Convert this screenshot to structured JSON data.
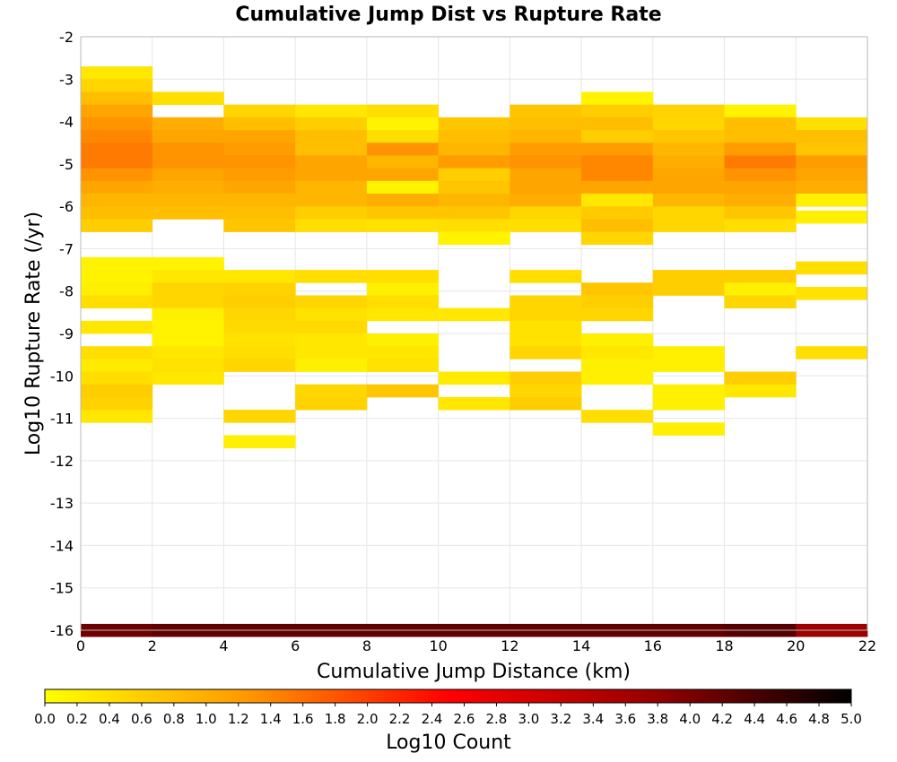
{
  "chart_data": {
    "type": "heatmap",
    "title": "Cumulative Jump Dist vs Rupture Rate",
    "xlabel": "Cumulative Jump Distance (km)",
    "ylabel": "Log10 Rupture Rate (/yr)",
    "xlim": [
      0,
      22
    ],
    "ylim": [
      -16,
      -2
    ],
    "x_ticks": [
      "0",
      "2",
      "4",
      "6",
      "8",
      "10",
      "12",
      "14",
      "16",
      "18",
      "20",
      "22"
    ],
    "y_ticks": [
      "-2",
      "-3",
      "-4",
      "-5",
      "-6",
      "-7",
      "-8",
      "-9",
      "-10",
      "-11",
      "-12",
      "-13",
      "-14",
      "-15",
      "-16"
    ],
    "x_bin_width": 2,
    "y_bin_height": 0.3,
    "grid": true,
    "colorbar": {
      "label": "Log10 Count",
      "min": 0.0,
      "max": 5.0,
      "ticks": [
        "0.0",
        "0.2",
        "0.4",
        "0.6",
        "0.8",
        "1.0",
        "1.2",
        "1.4",
        "1.6",
        "1.8",
        "2.0",
        "2.2",
        "2.4",
        "2.6",
        "2.8",
        "3.0",
        "3.2",
        "3.4",
        "3.6",
        "3.8",
        "4.0",
        "4.2",
        "4.4",
        "4.6",
        "4.8",
        "5.0"
      ],
      "colors": [
        "#ffff00",
        "#ff9900",
        "#ff0000",
        "#990000",
        "#000000"
      ]
    },
    "columns": [
      {
        "x": 0,
        "cells": [
          [
            -2.85,
            0.3
          ],
          [
            -3.15,
            0.5
          ],
          [
            -3.45,
            0.8
          ],
          [
            -3.75,
            1.1
          ],
          [
            -4.05,
            1.3
          ],
          [
            -4.35,
            1.4
          ],
          [
            -4.65,
            1.5
          ],
          [
            -4.95,
            1.5
          ],
          [
            -5.25,
            1.3
          ],
          [
            -5.55,
            1.1
          ],
          [
            -5.85,
            0.9
          ],
          [
            -6.15,
            0.8
          ],
          [
            -6.45,
            0.6
          ],
          [
            -7.35,
            0.15
          ],
          [
            -7.65,
            0.15
          ],
          [
            -7.95,
            0.2
          ],
          [
            -8.25,
            0.4
          ],
          [
            -8.85,
            0.3
          ],
          [
            -9.45,
            0.4
          ],
          [
            -9.75,
            0.25
          ],
          [
            -10.05,
            0.4
          ],
          [
            -10.35,
            0.6
          ],
          [
            -10.65,
            0.55
          ],
          [
            -10.95,
            0.3
          ],
          [
            -16.0,
            4.1
          ]
        ]
      },
      {
        "x": 2,
        "cells": [
          [
            -3.45,
            0.4
          ],
          [
            -4.05,
            1.0
          ],
          [
            -4.35,
            1.1
          ],
          [
            -4.65,
            1.3
          ],
          [
            -4.95,
            1.3
          ],
          [
            -5.25,
            1.1
          ],
          [
            -5.55,
            1.0
          ],
          [
            -5.85,
            0.9
          ],
          [
            -6.15,
            0.8
          ],
          [
            -7.35,
            0.15
          ],
          [
            -7.65,
            0.3
          ],
          [
            -7.95,
            0.5
          ],
          [
            -8.25,
            0.5
          ],
          [
            -8.55,
            0.2
          ],
          [
            -8.85,
            0.15
          ],
          [
            -9.15,
            0.15
          ],
          [
            -9.45,
            0.3
          ],
          [
            -9.75,
            0.35
          ],
          [
            -10.05,
            0.3
          ],
          [
            -16.0,
            4.2
          ]
        ]
      },
      {
        "x": 4,
        "cells": [
          [
            -3.75,
            0.5
          ],
          [
            -4.05,
            0.8
          ],
          [
            -4.35,
            1.1
          ],
          [
            -4.65,
            1.2
          ],
          [
            -4.95,
            1.3
          ],
          [
            -5.25,
            1.2
          ],
          [
            -5.55,
            1.1
          ],
          [
            -5.85,
            0.9
          ],
          [
            -6.15,
            0.8
          ],
          [
            -6.45,
            0.7
          ],
          [
            -7.65,
            0.3
          ],
          [
            -7.95,
            0.55
          ],
          [
            -8.25,
            0.6
          ],
          [
            -8.55,
            0.5
          ],
          [
            -8.85,
            0.45
          ],
          [
            -9.15,
            0.35
          ],
          [
            -9.45,
            0.4
          ],
          [
            -9.75,
            0.5
          ],
          [
            -10.95,
            0.5
          ],
          [
            -11.55,
            0.2
          ],
          [
            -16.0,
            4.2
          ]
        ]
      },
      {
        "x": 6,
        "cells": [
          [
            -3.75,
            0.3
          ],
          [
            -4.05,
            0.6
          ],
          [
            -4.35,
            0.8
          ],
          [
            -4.65,
            0.8
          ],
          [
            -4.95,
            1.1
          ],
          [
            -5.25,
            1.1
          ],
          [
            -5.55,
            0.9
          ],
          [
            -5.85,
            0.9
          ],
          [
            -6.15,
            0.6
          ],
          [
            -6.45,
            0.4
          ],
          [
            -7.65,
            0.4
          ],
          [
            -8.25,
            0.5
          ],
          [
            -8.55,
            0.35
          ],
          [
            -8.85,
            0.45
          ],
          [
            -9.15,
            0.3
          ],
          [
            -9.45,
            0.3
          ],
          [
            -9.75,
            0.2
          ],
          [
            -10.35,
            0.5
          ],
          [
            -10.65,
            0.55
          ],
          [
            -16.0,
            4.2
          ]
        ]
      },
      {
        "x": 8,
        "cells": [
          [
            -3.75,
            0.4
          ],
          [
            -4.05,
            0.15
          ],
          [
            -4.35,
            0.4
          ],
          [
            -4.65,
            1.3
          ],
          [
            -4.95,
            0.9
          ],
          [
            -5.25,
            1.1
          ],
          [
            -5.55,
            0.15
          ],
          [
            -5.85,
            1.0
          ],
          [
            -6.15,
            0.7
          ],
          [
            -6.45,
            0.35
          ],
          [
            -7.65,
            0.4
          ],
          [
            -7.95,
            0.2
          ],
          [
            -8.25,
            0.4
          ],
          [
            -8.55,
            0.3
          ],
          [
            -9.15,
            0.2
          ],
          [
            -9.45,
            0.3
          ],
          [
            -9.75,
            0.35
          ],
          [
            -10.35,
            0.7
          ],
          [
            -16.0,
            4.2
          ]
        ]
      },
      {
        "x": 10,
        "cells": [
          [
            -4.05,
            0.7
          ],
          [
            -4.35,
            0.8
          ],
          [
            -4.65,
            0.9
          ],
          [
            -4.95,
            1.2
          ],
          [
            -5.25,
            0.6
          ],
          [
            -5.55,
            0.7
          ],
          [
            -5.85,
            0.9
          ],
          [
            -6.15,
            0.7
          ],
          [
            -6.45,
            0.4
          ],
          [
            -6.75,
            0.15
          ],
          [
            -8.55,
            0.3
          ],
          [
            -10.05,
            0.25
          ],
          [
            -10.65,
            0.3
          ],
          [
            -16.0,
            4.2
          ]
        ]
      },
      {
        "x": 12,
        "cells": [
          [
            -3.75,
            0.7
          ],
          [
            -4.05,
            0.8
          ],
          [
            -4.35,
            0.9
          ],
          [
            -4.65,
            1.2
          ],
          [
            -4.95,
            1.3
          ],
          [
            -5.25,
            1.1
          ],
          [
            -5.55,
            1.1
          ],
          [
            -5.85,
            1.0
          ],
          [
            -6.15,
            0.5
          ],
          [
            -6.45,
            0.4
          ],
          [
            -7.65,
            0.4
          ],
          [
            -8.25,
            0.5
          ],
          [
            -8.55,
            0.5
          ],
          [
            -8.85,
            0.35
          ],
          [
            -9.15,
            0.35
          ],
          [
            -9.45,
            0.5
          ],
          [
            -10.05,
            0.6
          ],
          [
            -10.35,
            0.5
          ],
          [
            -10.65,
            0.6
          ],
          [
            -16.0,
            4.2
          ]
        ]
      },
      {
        "x": 14,
        "cells": [
          [
            -3.45,
            0.15
          ],
          [
            -3.75,
            0.6
          ],
          [
            -4.05,
            0.8
          ],
          [
            -4.35,
            0.6
          ],
          [
            -4.65,
            1.2
          ],
          [
            -4.95,
            1.4
          ],
          [
            -5.25,
            1.4
          ],
          [
            -5.55,
            1.1
          ],
          [
            -5.85,
            0.3
          ],
          [
            -6.15,
            0.65
          ],
          [
            -6.45,
            0.8
          ],
          [
            -6.75,
            0.5
          ],
          [
            -7.95,
            0.7
          ],
          [
            -8.25,
            0.6
          ],
          [
            -8.55,
            0.5
          ],
          [
            -9.15,
            0.2
          ],
          [
            -9.45,
            0.3
          ],
          [
            -9.75,
            0.2
          ],
          [
            -10.05,
            0.2
          ],
          [
            -10.95,
            0.4
          ],
          [
            -16.0,
            4.2
          ]
        ]
      },
      {
        "x": 16,
        "cells": [
          [
            -3.75,
            0.55
          ],
          [
            -4.05,
            0.5
          ],
          [
            -4.35,
            0.7
          ],
          [
            -4.65,
            0.9
          ],
          [
            -4.95,
            1.0
          ],
          [
            -5.25,
            1.1
          ],
          [
            -5.55,
            1.1
          ],
          [
            -5.85,
            0.9
          ],
          [
            -6.15,
            0.5
          ],
          [
            -6.45,
            0.5
          ],
          [
            -7.65,
            0.6
          ],
          [
            -7.95,
            0.6
          ],
          [
            -9.45,
            0.2
          ],
          [
            -9.75,
            0.2
          ],
          [
            -10.35,
            0.2
          ],
          [
            -10.65,
            0.2
          ],
          [
            -11.25,
            0.2
          ],
          [
            -16.0,
            4.2
          ]
        ]
      },
      {
        "x": 18,
        "cells": [
          [
            -3.75,
            0.15
          ],
          [
            -4.05,
            0.8
          ],
          [
            -4.35,
            0.8
          ],
          [
            -4.65,
            1.2
          ],
          [
            -4.95,
            1.5
          ],
          [
            -5.25,
            1.3
          ],
          [
            -5.55,
            1.1
          ],
          [
            -5.85,
            1.0
          ],
          [
            -6.15,
            0.7
          ],
          [
            -6.45,
            0.4
          ],
          [
            -7.65,
            0.6
          ],
          [
            -7.95,
            0.2
          ],
          [
            -8.25,
            0.5
          ],
          [
            -10.05,
            0.6
          ],
          [
            -10.35,
            0.3
          ],
          [
            -16.0,
            4.3
          ]
        ]
      },
      {
        "x": 20,
        "cells": [
          [
            -4.05,
            0.4
          ],
          [
            -4.35,
            0.8
          ],
          [
            -4.65,
            0.7
          ],
          [
            -4.95,
            1.2
          ],
          [
            -5.25,
            1.1
          ],
          [
            -5.55,
            1.0
          ],
          [
            -5.85,
            0.2
          ],
          [
            -6.25,
            0.2
          ],
          [
            -7.45,
            0.4
          ],
          [
            -8.05,
            0.35
          ],
          [
            -9.45,
            0.4
          ],
          [
            -16.0,
            3.7
          ]
        ]
      }
    ]
  }
}
